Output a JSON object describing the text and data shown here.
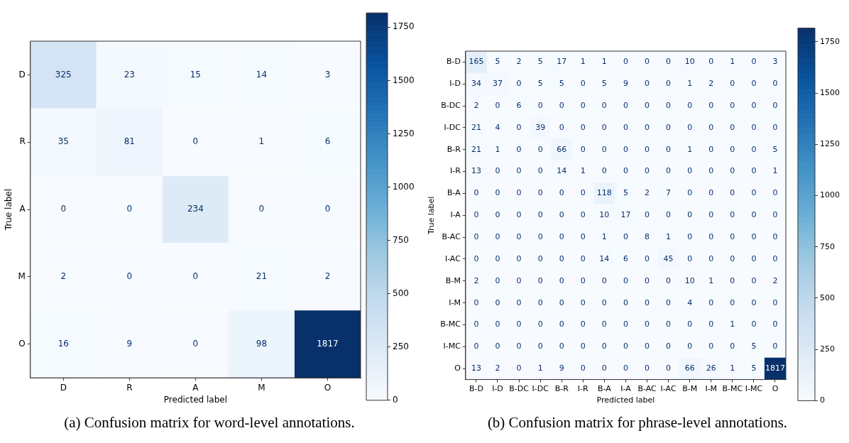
{
  "chart_data": [
    {
      "type": "heatmap",
      "xlabel": "Predicted label",
      "ylabel": "True label",
      "categories": [
        "D",
        "R",
        "A",
        "M",
        "O"
      ],
      "y_categories": [
        "D",
        "R",
        "A",
        "M",
        "O"
      ],
      "cells": [
        [
          325,
          23,
          15,
          14,
          3
        ],
        [
          35,
          81,
          0,
          1,
          6
        ],
        [
          0,
          0,
          234,
          0,
          0
        ],
        [
          2,
          0,
          0,
          21,
          2
        ],
        [
          16,
          9,
          0,
          98,
          1817
        ]
      ],
      "clim": [
        0,
        1817
      ],
      "cticks": [
        0,
        250,
        500,
        750,
        1000,
        1250,
        1500,
        1750
      ],
      "data_labels": true,
      "annotations": [
        "(a) Confusion matrix for word-level annotations."
      ]
    },
    {
      "type": "heatmap",
      "xlabel": "Predicted label",
      "ylabel": "True label",
      "categories": [
        "B-D",
        "I-D",
        "B-DC",
        "I-DC",
        "B-R",
        "I-R",
        "B-A",
        "I-A",
        "B-AC",
        "I-AC",
        "B-M",
        "I-M",
        "B-MC",
        "I-MC",
        "O"
      ],
      "y_categories": [
        "B-D",
        "I-D",
        "B-DC",
        "I-DC",
        "B-R",
        "I-R",
        "B-A",
        "I-A",
        "B-AC",
        "I-AC",
        "B-M",
        "I-M",
        "B-MC",
        "I-MC",
        "O"
      ],
      "cells": [
        [
          165,
          5,
          2,
          5,
          17,
          1,
          1,
          0,
          0,
          0,
          10,
          0,
          1,
          0,
          3
        ],
        [
          34,
          37,
          0,
          5,
          5,
          0,
          5,
          9,
          0,
          0,
          1,
          2,
          0,
          0,
          0
        ],
        [
          2,
          0,
          6,
          0,
          0,
          0,
          0,
          0,
          0,
          0,
          0,
          0,
          0,
          0,
          0
        ],
        [
          21,
          4,
          0,
          39,
          0,
          0,
          0,
          0,
          0,
          0,
          0,
          0,
          0,
          0,
          0
        ],
        [
          21,
          1,
          0,
          0,
          66,
          0,
          0,
          0,
          0,
          0,
          1,
          0,
          0,
          0,
          5
        ],
        [
          13,
          0,
          0,
          0,
          14,
          1,
          0,
          0,
          0,
          0,
          0,
          0,
          0,
          0,
          1
        ],
        [
          0,
          0,
          0,
          0,
          0,
          0,
          118,
          5,
          2,
          7,
          0,
          0,
          0,
          0,
          0
        ],
        [
          0,
          0,
          0,
          0,
          0,
          0,
          10,
          17,
          0,
          0,
          0,
          0,
          0,
          0,
          0
        ],
        [
          0,
          0,
          0,
          0,
          0,
          0,
          1,
          0,
          8,
          1,
          0,
          0,
          0,
          0,
          0
        ],
        [
          0,
          0,
          0,
          0,
          0,
          0,
          14,
          6,
          0,
          45,
          0,
          0,
          0,
          0,
          0
        ],
        [
          2,
          0,
          0,
          0,
          0,
          0,
          0,
          0,
          0,
          0,
          10,
          1,
          0,
          0,
          2
        ],
        [
          0,
          0,
          0,
          0,
          0,
          0,
          0,
          0,
          0,
          0,
          4,
          0,
          0,
          0,
          0
        ],
        [
          0,
          0,
          0,
          0,
          0,
          0,
          0,
          0,
          0,
          0,
          0,
          0,
          1,
          0,
          0
        ],
        [
          0,
          0,
          0,
          0,
          0,
          0,
          0,
          0,
          0,
          0,
          0,
          0,
          0,
          5,
          0
        ],
        [
          13,
          2,
          0,
          1,
          9,
          0,
          0,
          0,
          0,
          0,
          66,
          26,
          1,
          5,
          1817
        ]
      ],
      "clim": [
        0,
        1817
      ],
      "cticks": [
        0,
        250,
        500,
        750,
        1000,
        1250,
        1500,
        1750
      ],
      "data_labels": true,
      "annotations": [
        "(b) Confusion matrix for phrase-level annotations."
      ]
    }
  ]
}
